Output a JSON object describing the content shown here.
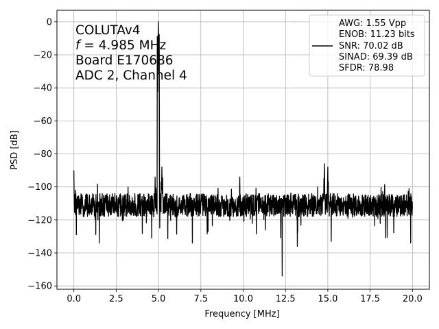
{
  "chart_data": {
    "type": "line",
    "xlabel": "Frequency [MHz]",
    "ylabel": "PSD [dB]",
    "xlim": [
      -1.0,
      21.0
    ],
    "ylim": [
      -162,
      7
    ],
    "xticks": [
      0.0,
      2.5,
      5.0,
      7.5,
      10.0,
      12.5,
      15.0,
      17.5,
      20.0
    ],
    "xtick_labels": [
      "0.0",
      "2.5",
      "5.0",
      "7.5",
      "10.0",
      "12.5",
      "15.0",
      "17.5",
      "20.0"
    ],
    "yticks": [
      0,
      -20,
      -40,
      -60,
      -80,
      -100,
      -120,
      -140,
      -160
    ],
    "ytick_labels": [
      "0",
      "−20",
      "−40",
      "−60",
      "−80",
      "−100",
      "−120",
      "−140",
      "−160"
    ],
    "grid": true,
    "annotation": {
      "line1": "COLUTAv4",
      "line2_var": "f",
      "line2_rest": " = 4.985 MHz",
      "line3": "Board E170686",
      "line4": "ADC 2, Channel 4"
    },
    "legend": {
      "placement": "top-right",
      "lines": [
        "AWG: 1.55 Vpp",
        "ENOB: 11.23 bits",
        "SNR: 70.02 dB",
        "SINAD: 69.39 dB",
        "SFDR: 78.98"
      ]
    },
    "series": [
      {
        "color": "#000000",
        "noise_floor_db": -111,
        "peaks": [
          {
            "x": 0.0,
            "y": -90
          },
          {
            "x": 0.1,
            "y": -102
          },
          {
            "x": 4.6,
            "y": -104
          },
          {
            "x": 4.8,
            "y": -94
          },
          {
            "x": 4.985,
            "y": 0
          },
          {
            "x": 5.2,
            "y": -88
          },
          {
            "x": 9.8,
            "y": -94
          },
          {
            "x": 14.4,
            "y": -100
          },
          {
            "x": 14.8,
            "y": -86
          },
          {
            "x": 15.0,
            "y": -88
          },
          {
            "x": 19.8,
            "y": -101
          }
        ],
        "dips": [
          {
            "x": 0.15,
            "y": -129
          },
          {
            "x": 1.5,
            "y": -134
          },
          {
            "x": 4.6,
            "y": -131
          },
          {
            "x": 7.0,
            "y": -134
          },
          {
            "x": 12.3,
            "y": -154
          },
          {
            "x": 13.2,
            "y": -136
          },
          {
            "x": 15.2,
            "y": -133
          },
          {
            "x": 19.9,
            "y": -134
          }
        ]
      }
    ]
  }
}
